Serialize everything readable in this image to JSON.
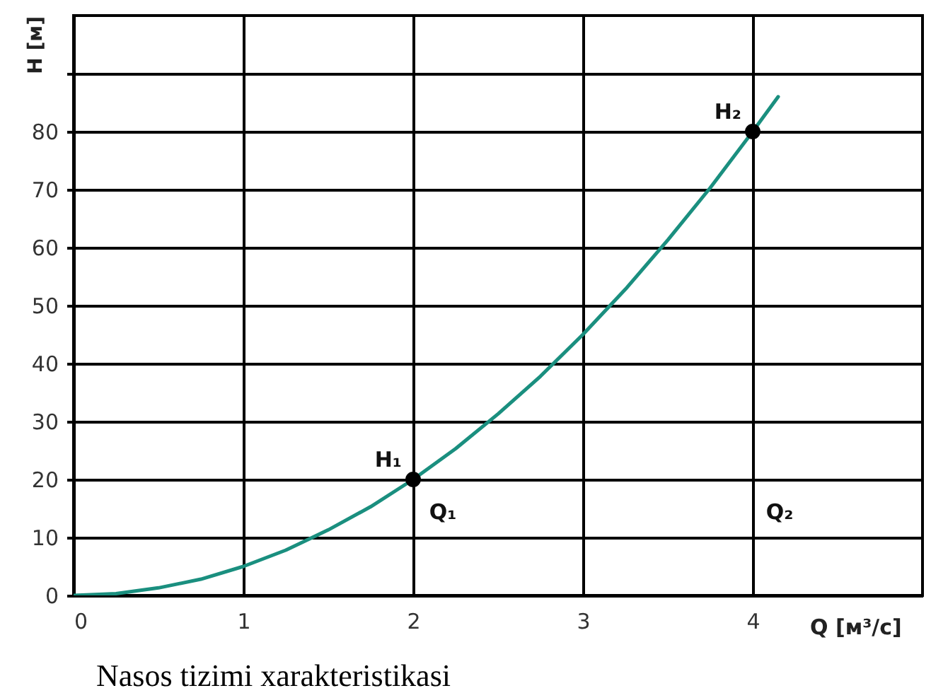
{
  "chart_data": {
    "type": "line",
    "xlabel": "Q [м³/с]",
    "ylabel": "H [м]",
    "annotations": [
      {
        "text": "H₁",
        "x": 2,
        "y": 20
      },
      "Q₁",
      {
        "text": "H₂",
        "x": 4,
        "y": 80
      },
      "Q₂",
      "Nasos tizimi xarakteristikasi"
    ],
    "x": [
      0,
      0.25,
      0.5,
      0.75,
      1,
      1.25,
      1.5,
      1.75,
      2,
      2.25,
      2.5,
      2.75,
      3,
      3.25,
      3.5,
      3.75,
      4,
      4.15
    ],
    "series": [
      {
        "color": "#1a8f7f",
        "values": [
          0,
          0.3,
          1.3,
          2.8,
          5,
          7.8,
          11.3,
          15.3,
          20,
          25.3,
          31.3,
          37.8,
          45,
          52.8,
          61.3,
          70.3,
          80,
          86
        ]
      },
      {
        "type": "scatter",
        "marker": "circle",
        "color": "#000000",
        "x": [
          2,
          4
        ],
        "values": [
          20,
          80
        ]
      }
    ],
    "xlim": [
      0,
      5
    ],
    "ylim": [
      0,
      100
    ],
    "xticks": [
      0,
      1,
      2,
      3,
      4
    ],
    "yticks": [
      0,
      10,
      20,
      30,
      40,
      50,
      60,
      70,
      80,
      {
        "value": 90,
        "label": null
      }
    ],
    "grid": true
  }
}
